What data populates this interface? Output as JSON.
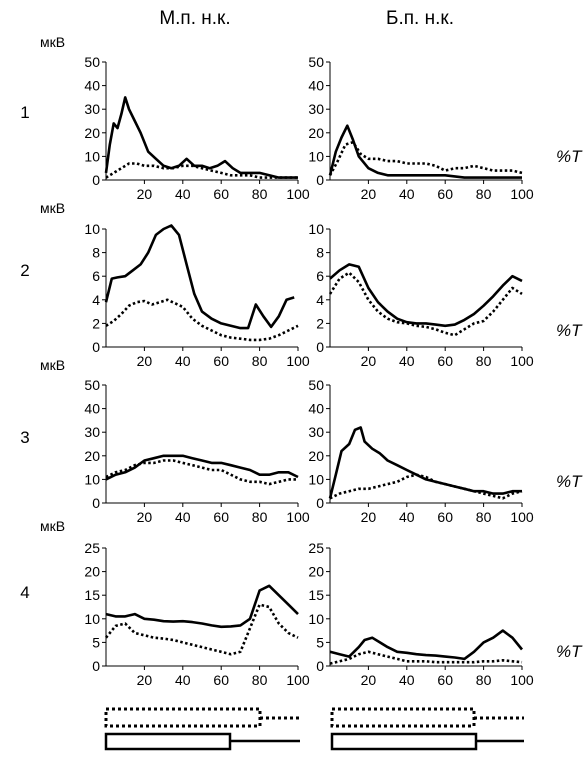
{
  "column_titles": [
    "М.п. н.к.",
    "Б.п. н.к."
  ],
  "row_labels": [
    "1",
    "2",
    "3",
    "4"
  ],
  "y_unit": "мкВ",
  "x_unit": "%T",
  "chart_data": [
    {
      "type": "line",
      "row": 1,
      "col": 1,
      "xlim": [
        0,
        100
      ],
      "ylim": [
        0,
        50
      ],
      "yticks": [
        0,
        10,
        20,
        30,
        40,
        50
      ],
      "xticks": [
        20,
        40,
        60,
        80,
        100
      ],
      "series": [
        {
          "style": "solid",
          "x": [
            0,
            2,
            4,
            6,
            8,
            10,
            12,
            15,
            18,
            22,
            26,
            30,
            34,
            38,
            42,
            46,
            50,
            54,
            58,
            62,
            66,
            70,
            75,
            80,
            85,
            90,
            95,
            100
          ],
          "y": [
            3,
            15,
            24,
            22,
            28,
            35,
            30,
            25,
            20,
            12,
            9,
            6,
            5,
            6,
            9,
            6,
            6,
            5,
            6,
            8,
            5,
            3,
            3,
            3,
            2,
            1,
            1,
            1
          ]
        },
        {
          "style": "dotted",
          "x": [
            0,
            4,
            8,
            12,
            16,
            20,
            25,
            30,
            35,
            40,
            45,
            50,
            55,
            60,
            65,
            70,
            75,
            80,
            85,
            90,
            95,
            100
          ],
          "y": [
            1,
            3,
            5,
            7,
            7,
            6,
            6,
            5,
            5,
            6,
            6,
            5,
            4,
            3,
            2,
            2,
            2,
            1,
            1,
            1,
            1,
            1
          ]
        }
      ]
    },
    {
      "type": "line",
      "row": 1,
      "col": 2,
      "xlim": [
        0,
        100
      ],
      "ylim": [
        0,
        50
      ],
      "yticks": [
        0,
        10,
        20,
        30,
        40,
        50
      ],
      "xticks": [
        20,
        40,
        60,
        80,
        100
      ],
      "series": [
        {
          "style": "solid",
          "x": [
            0,
            3,
            6,
            9,
            12,
            15,
            20,
            25,
            30,
            35,
            40,
            50,
            60,
            70,
            80,
            90,
            100
          ],
          "y": [
            2,
            12,
            18,
            23,
            17,
            10,
            5,
            3,
            2,
            2,
            2,
            2,
            2,
            1,
            1,
            1,
            1
          ]
        },
        {
          "style": "dotted",
          "x": [
            0,
            4,
            8,
            12,
            16,
            20,
            25,
            30,
            35,
            40,
            45,
            50,
            55,
            60,
            65,
            70,
            75,
            80,
            85,
            90,
            95,
            100
          ],
          "y": [
            2,
            8,
            15,
            16,
            11,
            9,
            9,
            8,
            8,
            7,
            7,
            7,
            6,
            4,
            5,
            5,
            6,
            5,
            4,
            4,
            4,
            3
          ]
        }
      ]
    },
    {
      "type": "line",
      "row": 2,
      "col": 1,
      "xlim": [
        0,
        100
      ],
      "ylim": [
        0,
        10
      ],
      "yticks": [
        0,
        2,
        4,
        6,
        8,
        10
      ],
      "xticks": [
        20,
        40,
        60,
        80,
        100
      ],
      "series": [
        {
          "style": "solid",
          "x": [
            0,
            3,
            6,
            10,
            14,
            18,
            22,
            26,
            30,
            34,
            38,
            42,
            46,
            50,
            55,
            60,
            65,
            70,
            74,
            78,
            82,
            86,
            90,
            94,
            98
          ],
          "y": [
            3.8,
            5.8,
            5.9,
            6.0,
            6.5,
            7.0,
            8.0,
            9.5,
            10.0,
            10.3,
            9.5,
            7.0,
            4.5,
            3.0,
            2.4,
            2.0,
            1.8,
            1.6,
            1.6,
            3.6,
            2.6,
            1.7,
            2.6,
            4.0,
            4.2
          ]
        },
        {
          "style": "dotted",
          "x": [
            0,
            4,
            8,
            12,
            16,
            20,
            24,
            28,
            32,
            36,
            40,
            45,
            50,
            55,
            60,
            65,
            70,
            75,
            80,
            85,
            90,
            95,
            100
          ],
          "y": [
            1.8,
            2.2,
            2.8,
            3.5,
            3.8,
            3.9,
            3.6,
            3.8,
            4.0,
            3.7,
            3.4,
            2.4,
            1.8,
            1.4,
            1.0,
            0.8,
            0.7,
            0.6,
            0.6,
            0.7,
            1.0,
            1.4,
            1.8
          ]
        }
      ]
    },
    {
      "type": "line",
      "row": 2,
      "col": 2,
      "xlim": [
        0,
        100
      ],
      "ylim": [
        0,
        10
      ],
      "yticks": [
        0,
        2,
        4,
        6,
        8,
        10
      ],
      "xticks": [
        20,
        40,
        60,
        80,
        100
      ],
      "series": [
        {
          "style": "solid",
          "x": [
            0,
            5,
            10,
            15,
            20,
            25,
            30,
            35,
            40,
            45,
            50,
            55,
            60,
            65,
            70,
            75,
            80,
            85,
            90,
            95,
            100
          ],
          "y": [
            5.8,
            6.5,
            7.0,
            6.8,
            5.0,
            3.8,
            3.0,
            2.4,
            2.1,
            2.0,
            2.0,
            1.9,
            1.8,
            1.9,
            2.3,
            2.8,
            3.5,
            4.3,
            5.2,
            6.0,
            5.6
          ]
        },
        {
          "style": "dotted",
          "x": [
            0,
            5,
            10,
            15,
            20,
            25,
            30,
            35,
            40,
            45,
            50,
            55,
            60,
            65,
            70,
            75,
            80,
            85,
            90,
            95,
            100
          ],
          "y": [
            4.5,
            5.8,
            6.3,
            5.5,
            4.0,
            3.0,
            2.4,
            2.1,
            2.0,
            1.8,
            1.7,
            1.5,
            1.2,
            1.0,
            1.5,
            2.0,
            2.2,
            3.0,
            4.0,
            5.0,
            4.5
          ]
        }
      ]
    },
    {
      "type": "line",
      "row": 3,
      "col": 1,
      "xlim": [
        0,
        100
      ],
      "ylim": [
        0,
        50
      ],
      "yticks": [
        0,
        10,
        20,
        30,
        40,
        50
      ],
      "xticks": [
        20,
        40,
        60,
        80,
        100
      ],
      "series": [
        {
          "style": "solid",
          "x": [
            0,
            5,
            10,
            15,
            20,
            25,
            30,
            35,
            40,
            45,
            50,
            55,
            60,
            65,
            70,
            75,
            80,
            85,
            90,
            95,
            100
          ],
          "y": [
            10,
            12,
            13,
            15,
            18,
            19,
            20,
            20,
            20,
            19,
            18,
            17,
            17,
            16,
            15,
            14,
            12,
            12,
            13,
            13,
            11
          ]
        },
        {
          "style": "dotted",
          "x": [
            0,
            5,
            10,
            15,
            20,
            25,
            30,
            35,
            40,
            45,
            50,
            55,
            60,
            65,
            70,
            75,
            80,
            85,
            90,
            95,
            100
          ],
          "y": [
            11,
            13,
            14,
            16,
            17,
            17,
            18,
            18,
            17,
            16,
            15,
            14,
            14,
            12,
            10,
            9,
            9,
            8,
            9,
            10,
            10
          ]
        }
      ]
    },
    {
      "type": "line",
      "row": 3,
      "col": 2,
      "xlim": [
        0,
        100
      ],
      "ylim": [
        0,
        50
      ],
      "yticks": [
        0,
        10,
        20,
        30,
        40,
        50
      ],
      "xticks": [
        20,
        40,
        60,
        80,
        100
      ],
      "series": [
        {
          "style": "solid",
          "x": [
            0,
            3,
            6,
            10,
            13,
            16,
            18,
            22,
            26,
            30,
            35,
            40,
            45,
            50,
            55,
            60,
            65,
            70,
            75,
            80,
            85,
            90,
            95,
            100
          ],
          "y": [
            2,
            12,
            22,
            25,
            31,
            32,
            26,
            23,
            21,
            18,
            16,
            14,
            12,
            10,
            9,
            8,
            7,
            6,
            5,
            5,
            4,
            4,
            5,
            5
          ]
        },
        {
          "style": "dotted",
          "x": [
            0,
            5,
            10,
            15,
            20,
            25,
            30,
            35,
            40,
            45,
            50,
            55,
            60,
            65,
            70,
            75,
            80,
            85,
            90,
            95,
            100
          ],
          "y": [
            2,
            4,
            5,
            6,
            6,
            7,
            8,
            9,
            11,
            12,
            11,
            9,
            8,
            7,
            6,
            5,
            4,
            3,
            2,
            4,
            5
          ]
        }
      ]
    },
    {
      "type": "line",
      "row": 4,
      "col": 1,
      "xlim": [
        0,
        100
      ],
      "ylim": [
        0,
        25
      ],
      "yticks": [
        0,
        5,
        10,
        15,
        20,
        25
      ],
      "xticks": [
        20,
        40,
        60,
        80,
        100
      ],
      "series": [
        {
          "style": "solid",
          "x": [
            0,
            5,
            10,
            15,
            20,
            25,
            30,
            35,
            40,
            45,
            50,
            55,
            60,
            65,
            70,
            75,
            80,
            85,
            90,
            95,
            100
          ],
          "y": [
            11,
            10.5,
            10.5,
            11,
            10,
            9.8,
            9.5,
            9.4,
            9.5,
            9.3,
            9,
            8.6,
            8.3,
            8.4,
            8.6,
            10,
            16,
            17,
            15,
            13,
            11
          ]
        },
        {
          "style": "dotted",
          "x": [
            0,
            5,
            10,
            15,
            20,
            25,
            30,
            35,
            40,
            45,
            50,
            55,
            60,
            65,
            70,
            75,
            80,
            85,
            90,
            95,
            100
          ],
          "y": [
            6,
            8.5,
            9,
            7,
            6.5,
            6,
            5.8,
            5.5,
            5,
            4.5,
            4,
            3.5,
            3,
            2.5,
            3,
            8,
            13,
            12.5,
            9,
            7,
            6
          ]
        }
      ]
    },
    {
      "type": "line",
      "row": 4,
      "col": 2,
      "xlim": [
        0,
        100
      ],
      "ylim": [
        0,
        25
      ],
      "yticks": [
        0,
        5,
        10,
        15,
        20,
        25
      ],
      "xticks": [
        20,
        40,
        60,
        80,
        100
      ],
      "series": [
        {
          "style": "solid",
          "x": [
            0,
            5,
            10,
            15,
            18,
            22,
            26,
            30,
            35,
            40,
            45,
            50,
            55,
            60,
            65,
            70,
            75,
            80,
            85,
            90,
            95,
            100
          ],
          "y": [
            3,
            2.5,
            2,
            4,
            5.5,
            6,
            5,
            4,
            3,
            2.8,
            2.5,
            2.3,
            2.2,
            2,
            1.8,
            1.5,
            3,
            5,
            6,
            7.5,
            6,
            3.5
          ]
        },
        {
          "style": "dotted",
          "x": [
            0,
            5,
            10,
            15,
            20,
            25,
            30,
            35,
            40,
            45,
            50,
            55,
            60,
            65,
            70,
            75,
            80,
            85,
            90,
            95,
            100
          ],
          "y": [
            0.5,
            1,
            1.5,
            2.5,
            3,
            2.5,
            2,
            1.5,
            1,
            1,
            1,
            0.8,
            0.8,
            0.8,
            0.8,
            0.8,
            1,
            1,
            1.2,
            1,
            0.8
          ]
        }
      ]
    }
  ]
}
